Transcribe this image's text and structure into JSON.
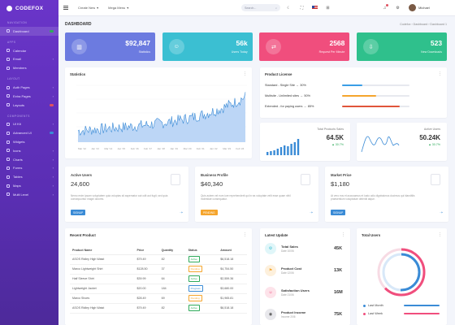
{
  "app": {
    "name": "CODEFOX"
  },
  "sidebar": {
    "sections": {
      "navigation": "NAVIGATION",
      "apps": "APPS",
      "layout": "LAYOUT",
      "components": "COMPONENTS"
    },
    "items": [
      {
        "label": "Dashboard",
        "badge": "",
        "badge_color": "#2eaa5a",
        "active": true
      },
      {
        "label": "Calendar"
      },
      {
        "label": "Email",
        "chev": "›"
      },
      {
        "label": "Members"
      },
      {
        "label": "Auth Pages",
        "chev": "›"
      },
      {
        "label": "Extra Pages",
        "chev": "›"
      },
      {
        "label": "Layouts",
        "badge": "",
        "badge_color": "#e0515f"
      },
      {
        "label": "UI Kit",
        "chev": "›"
      },
      {
        "label": "Advanced UI",
        "badge": "",
        "badge_color": "#3a8bd6"
      },
      {
        "label": "Widgets"
      },
      {
        "label": "Icons",
        "chev": "›"
      },
      {
        "label": "Charts",
        "chev": "›"
      },
      {
        "label": "Forms",
        "chev": "›"
      },
      {
        "label": "Tables",
        "chev": "›"
      },
      {
        "label": "Maps",
        "chev": "›"
      },
      {
        "label": "Multi Level",
        "chev": "›"
      }
    ]
  },
  "topbar": {
    "menu1": "Create New",
    "menu2": "Mega Menu",
    "search_placeholder": "Search...",
    "user": "Michael"
  },
  "page": {
    "title": "DASHBOARD",
    "breadcrumb": "Codefox  ›  Dashboard  ›  Dashboard 1"
  },
  "stats": [
    {
      "value": "$92,847",
      "label": "Statistics",
      "color": "#6c7be0",
      "icon": "chart-icon",
      "glyph": "▥"
    },
    {
      "value": "56k",
      "label": "Users Today",
      "color": "#3bbfd2",
      "icon": "users-icon",
      "glyph": "☺"
    },
    {
      "value": "2568",
      "label": "Request Per Minute",
      "color": "#f04e7d",
      "icon": "shuffle-icon",
      "glyph": "⇄"
    },
    {
      "value": "523",
      "label": "New Downloads",
      "color": "#2fc08c",
      "icon": "download-icon",
      "glyph": "⇩"
    }
  ],
  "statistics": {
    "title": "Statistics",
    "xlabels": [
      "Mar '12",
      "Jan '13",
      "Mar '14",
      "Apr '15",
      "Feb '16",
      "Feb '17",
      "Jan '18",
      "Jan '19",
      "Mar '20",
      "Feb '21",
      "Jan '22",
      "Mar '23",
      "Feb '24"
    ]
  },
  "product_license": {
    "title": "Product License",
    "rows": [
      {
        "label": "Standard - Single Site",
        "pct": "30%",
        "fill": 0.3,
        "color": "#3a9ee6"
      },
      {
        "label": "Multisite - Unlimited sites",
        "pct": "50%",
        "fill": 0.5,
        "color": "#f5a52d"
      },
      {
        "label": "Extended - for paying users",
        "pct": "85%",
        "fill": 0.85,
        "color": "#e0553a"
      }
    ]
  },
  "mini": [
    {
      "label": "Total Products Sales",
      "value": "64.5K",
      "change": "▲ 30.7%"
    },
    {
      "label": "Active Users",
      "value": "50.24K",
      "change": "▲ 30.7%"
    }
  ],
  "info": [
    {
      "title": "Active Users",
      "value": "24,600",
      "desc": "Nemo enim ipsam voluptatem quia voluptas sit aspernatur aut odit aut fugit, sed quia consequuntur magni dolores.",
      "badge": "SIGNUP",
      "badge_color": "#3a8bd6"
    },
    {
      "title": "Business Profile",
      "value": "$40,340",
      "desc": "Quis autem vel eum iure reprehenderit qui in ea voluptate velit esse quam nihil molestiae consequatur.",
      "badge": "PENDING",
      "badge_color": "#f5a52d"
    },
    {
      "title": "Market Price",
      "value": "$1,180",
      "desc": "At vero eos et accusamus et iusto odio dignissimos ducimus qui blanditiis praesentium voluptatum deleniti atque.",
      "badge": "SIGNUP",
      "badge_color": "#3a8bd6"
    }
  ],
  "recent": {
    "title": "Recent Product",
    "columns": [
      "Product Name",
      "Price",
      "Quantity",
      "Status",
      "Amount"
    ],
    "rows": [
      {
        "name": "ASOS Ridley High Waist",
        "price": "$79.49",
        "qty": "82",
        "status": "Active",
        "color": "#2eaa5a",
        "amount": "$6,518.18"
      },
      {
        "name": "Marco Lightweight Shirt",
        "price": "$128.50",
        "qty": "37",
        "status": "Pending",
        "color": "#f5a52d",
        "amount": "$4,754.50"
      },
      {
        "name": "Half Sleeve Shirt",
        "price": "$39.99",
        "qty": "64",
        "status": "Active",
        "color": "#2eaa5a",
        "amount": "$2,559.36"
      },
      {
        "name": "Lightweight Jacket",
        "price": "$20.00",
        "qty": "184",
        "status": "Progress",
        "color": "#3a8bd6",
        "amount": "$3,680.00"
      },
      {
        "name": "Marco Shoes",
        "price": "$28.49",
        "qty": "69",
        "status": "Pending",
        "color": "#f5a52d",
        "amount": "$1,965.81"
      },
      {
        "name": "ASOS Ridley High Waist",
        "price": "$79.49",
        "qty": "82",
        "status": "Active",
        "color": "#2eaa5a",
        "amount": "$6,518.18"
      }
    ]
  },
  "latest": {
    "title": "Latest Update",
    "items": [
      {
        "name": "Total Sales",
        "date": "Date 10/06",
        "value": "45K",
        "color": "#3bbfd2",
        "bg": "#e0f6f9",
        "glyph": "⚙",
        "icon": "settings-icon"
      },
      {
        "name": "Product Cost",
        "date": "Date 12/06",
        "value": "13K",
        "color": "#f5a52d",
        "bg": "#fdf0dc",
        "glyph": "⚑",
        "icon": "flag-icon"
      },
      {
        "name": "Satisfaction Users",
        "date": "Date 21/06",
        "value": "16M",
        "color": "#f04e7d",
        "bg": "#fde3ea",
        "glyph": "☺",
        "icon": "smile-icon"
      },
      {
        "name": "Product Income",
        "date": "Income 2/06",
        "value": "75K",
        "color": "#555",
        "bg": "#e8e8ec",
        "glyph": "◉",
        "icon": "coin-icon"
      }
    ]
  },
  "total_users": {
    "title": "Total Users",
    "legend": [
      {
        "label": "Last Month",
        "color": "#3a8bd6"
      },
      {
        "label": "Last Week",
        "color": "#f04e7d"
      }
    ]
  }
}
